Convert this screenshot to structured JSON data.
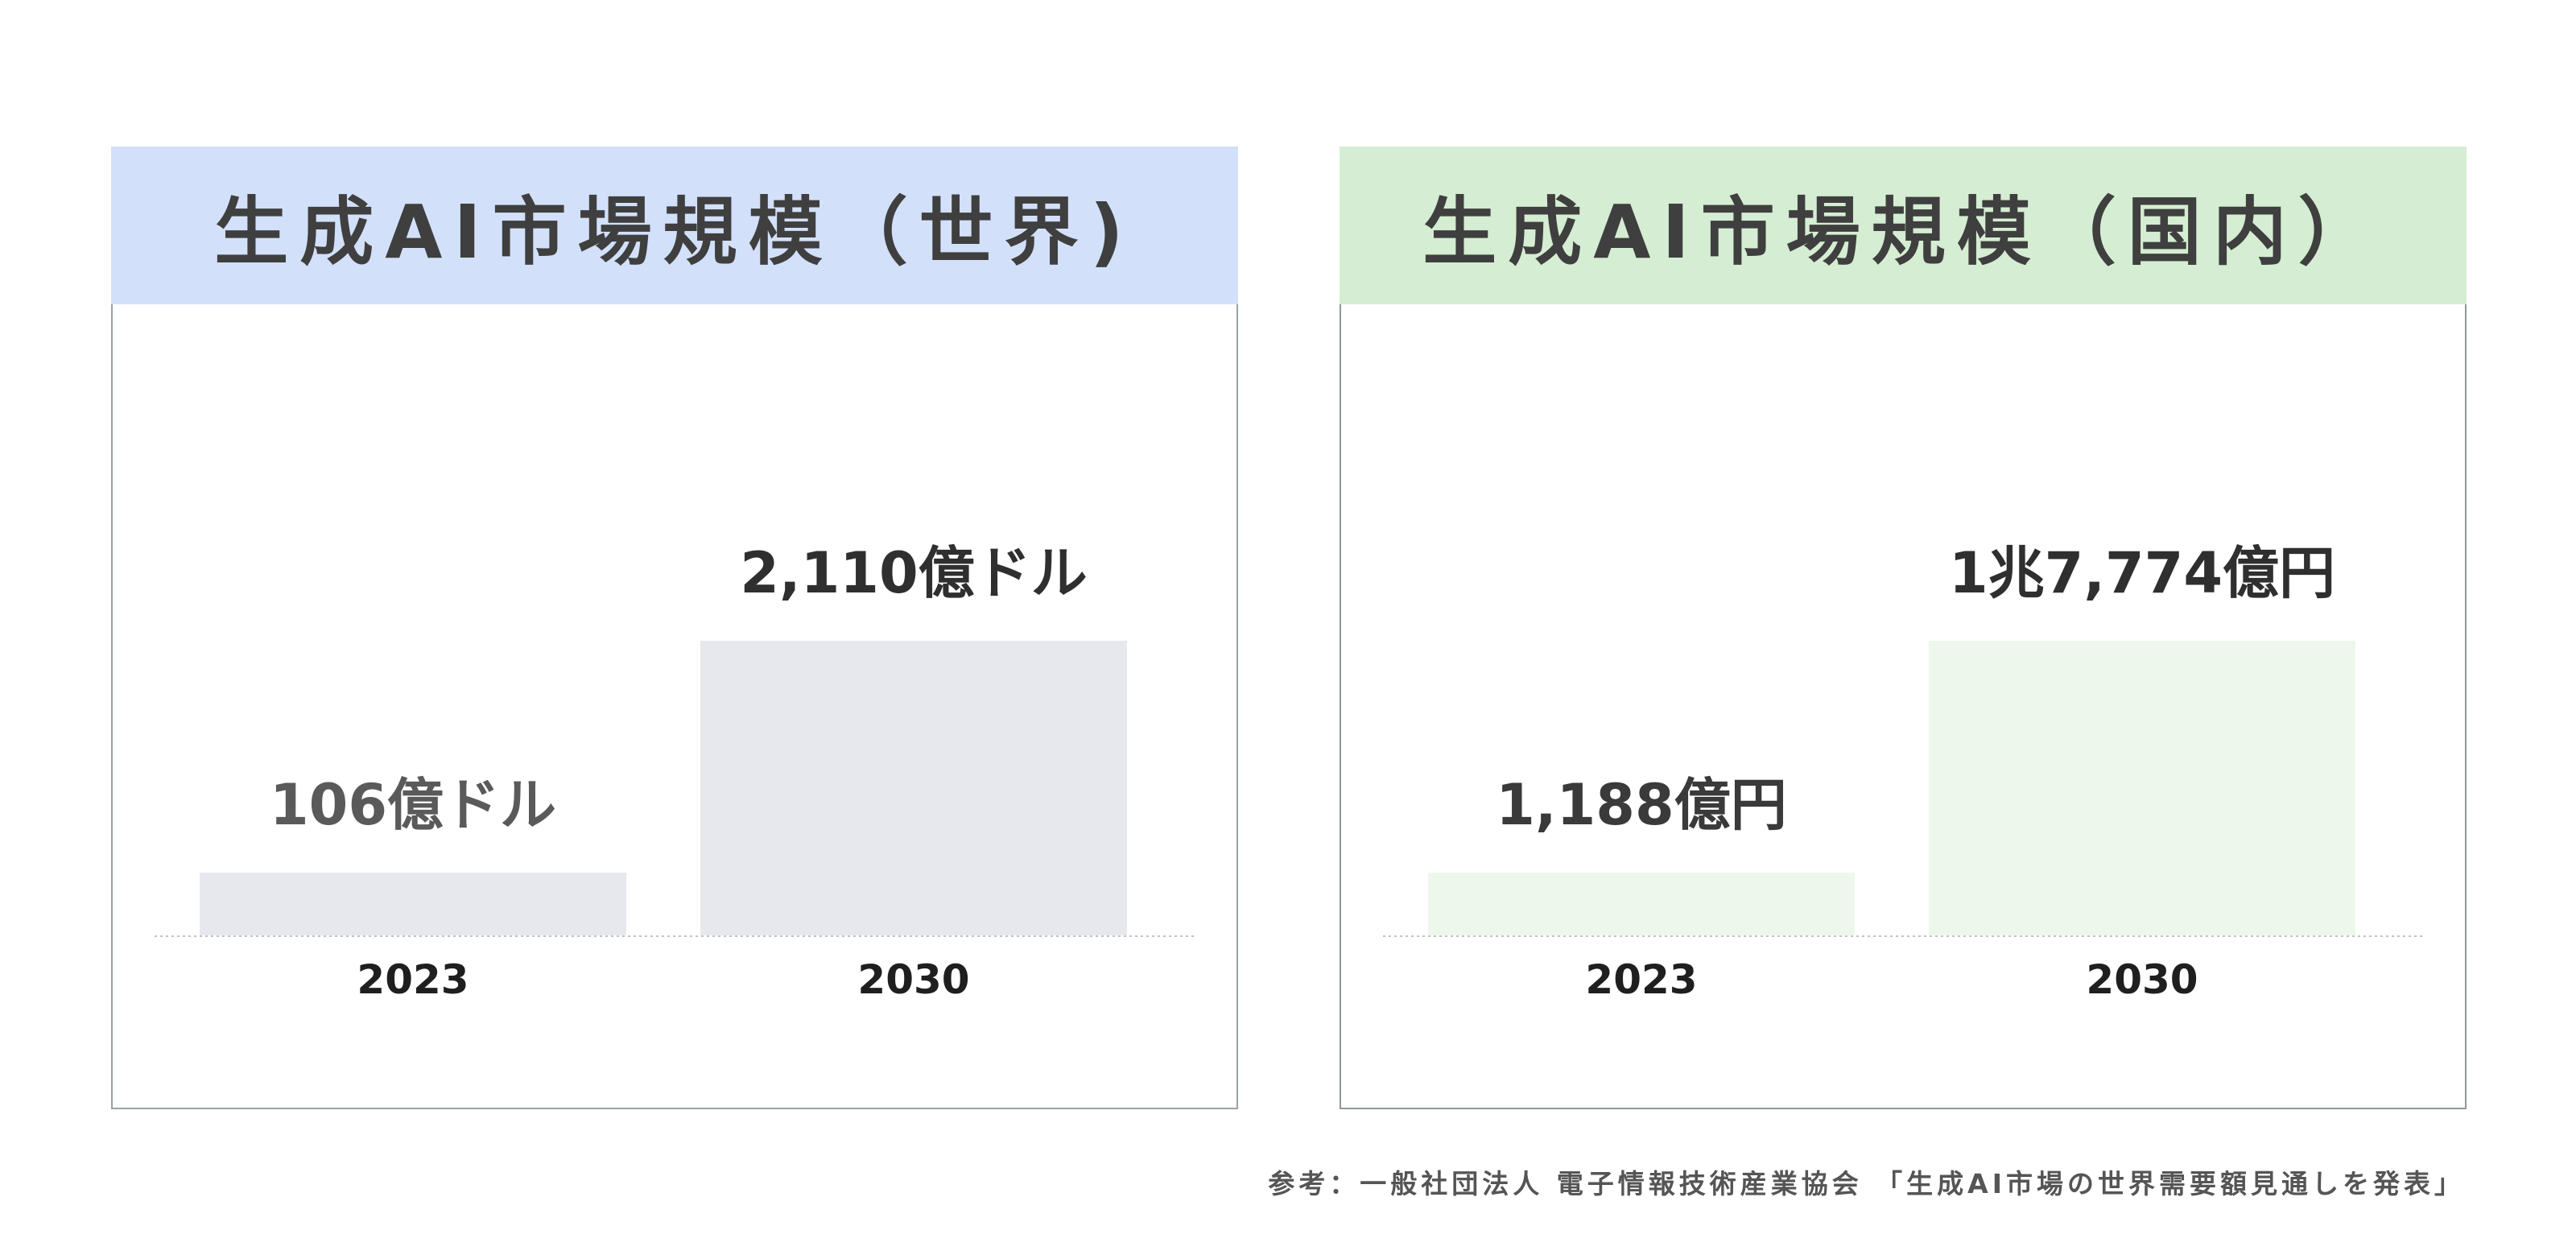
{
  "chart_data": [
    {
      "type": "bar",
      "title": "生成AI市場規模（世界)",
      "categories": [
        "2023",
        "2030"
      ],
      "values": [
        106,
        2110
      ],
      "value_labels": [
        "106億ドル",
        "2,110億ドル"
      ],
      "unit": "億ドル",
      "ylim": [
        0,
        2110
      ],
      "grid": false,
      "colors": {
        "header": "#d3e0fa",
        "bar": "#e7e8ed",
        "small_label": "#5a5a5a",
        "large_label": "#2f2f2f"
      }
    },
    {
      "type": "bar",
      "title": "生成AI市場規模（国内）",
      "categories": [
        "2023",
        "2030"
      ],
      "values": [
        1188,
        17774
      ],
      "value_labels": [
        "1,188億円",
        "1兆7,774億円"
      ],
      "unit": "億円",
      "ylim": [
        0,
        17774
      ],
      "grid": false,
      "colors": {
        "header": "#d5edd2",
        "bar": "#eef7ec",
        "small_label": "#3a3a3a",
        "large_label": "#2f2f2f"
      }
    }
  ],
  "source_note": "参考：一般社団法人 電子情報技術産業協会 「生成AI市場の世界需要額見通しを発表」"
}
